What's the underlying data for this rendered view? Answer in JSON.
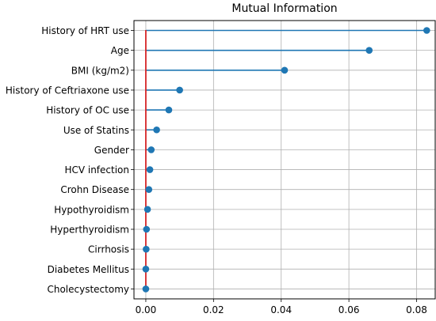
{
  "chart_data": {
    "type": "lollipop",
    "orientation": "horizontal",
    "title": "Mutual Information",
    "xlabel": "",
    "ylabel": "",
    "xlim": [
      -0.0035,
      0.0855
    ],
    "xticks": [
      0.0,
      0.02,
      0.04,
      0.06,
      0.08
    ],
    "xtick_labels": [
      "0.00",
      "0.02",
      "0.04",
      "0.06",
      "0.08"
    ],
    "grid": true,
    "baseline_color": "#d62728",
    "marker_color": "#1f77b4",
    "categories": [
      "History of HRT use",
      "Age",
      "BMI (kg/m2)",
      "History of Ceftriaxone use",
      "History of OC use",
      "Use of Statins",
      "Gender",
      "HCV infection",
      "Crohn Disease",
      "Hypothyroidism",
      "Hyperthyroidism",
      "Cirrhosis",
      "Diabetes Mellitus",
      "Cholecystectomy"
    ],
    "values": [
      0.083,
      0.066,
      0.041,
      0.01,
      0.0068,
      0.0032,
      0.0016,
      0.0012,
      0.0009,
      0.0005,
      0.0002,
      0.0001,
      0.0,
      0.0
    ]
  }
}
